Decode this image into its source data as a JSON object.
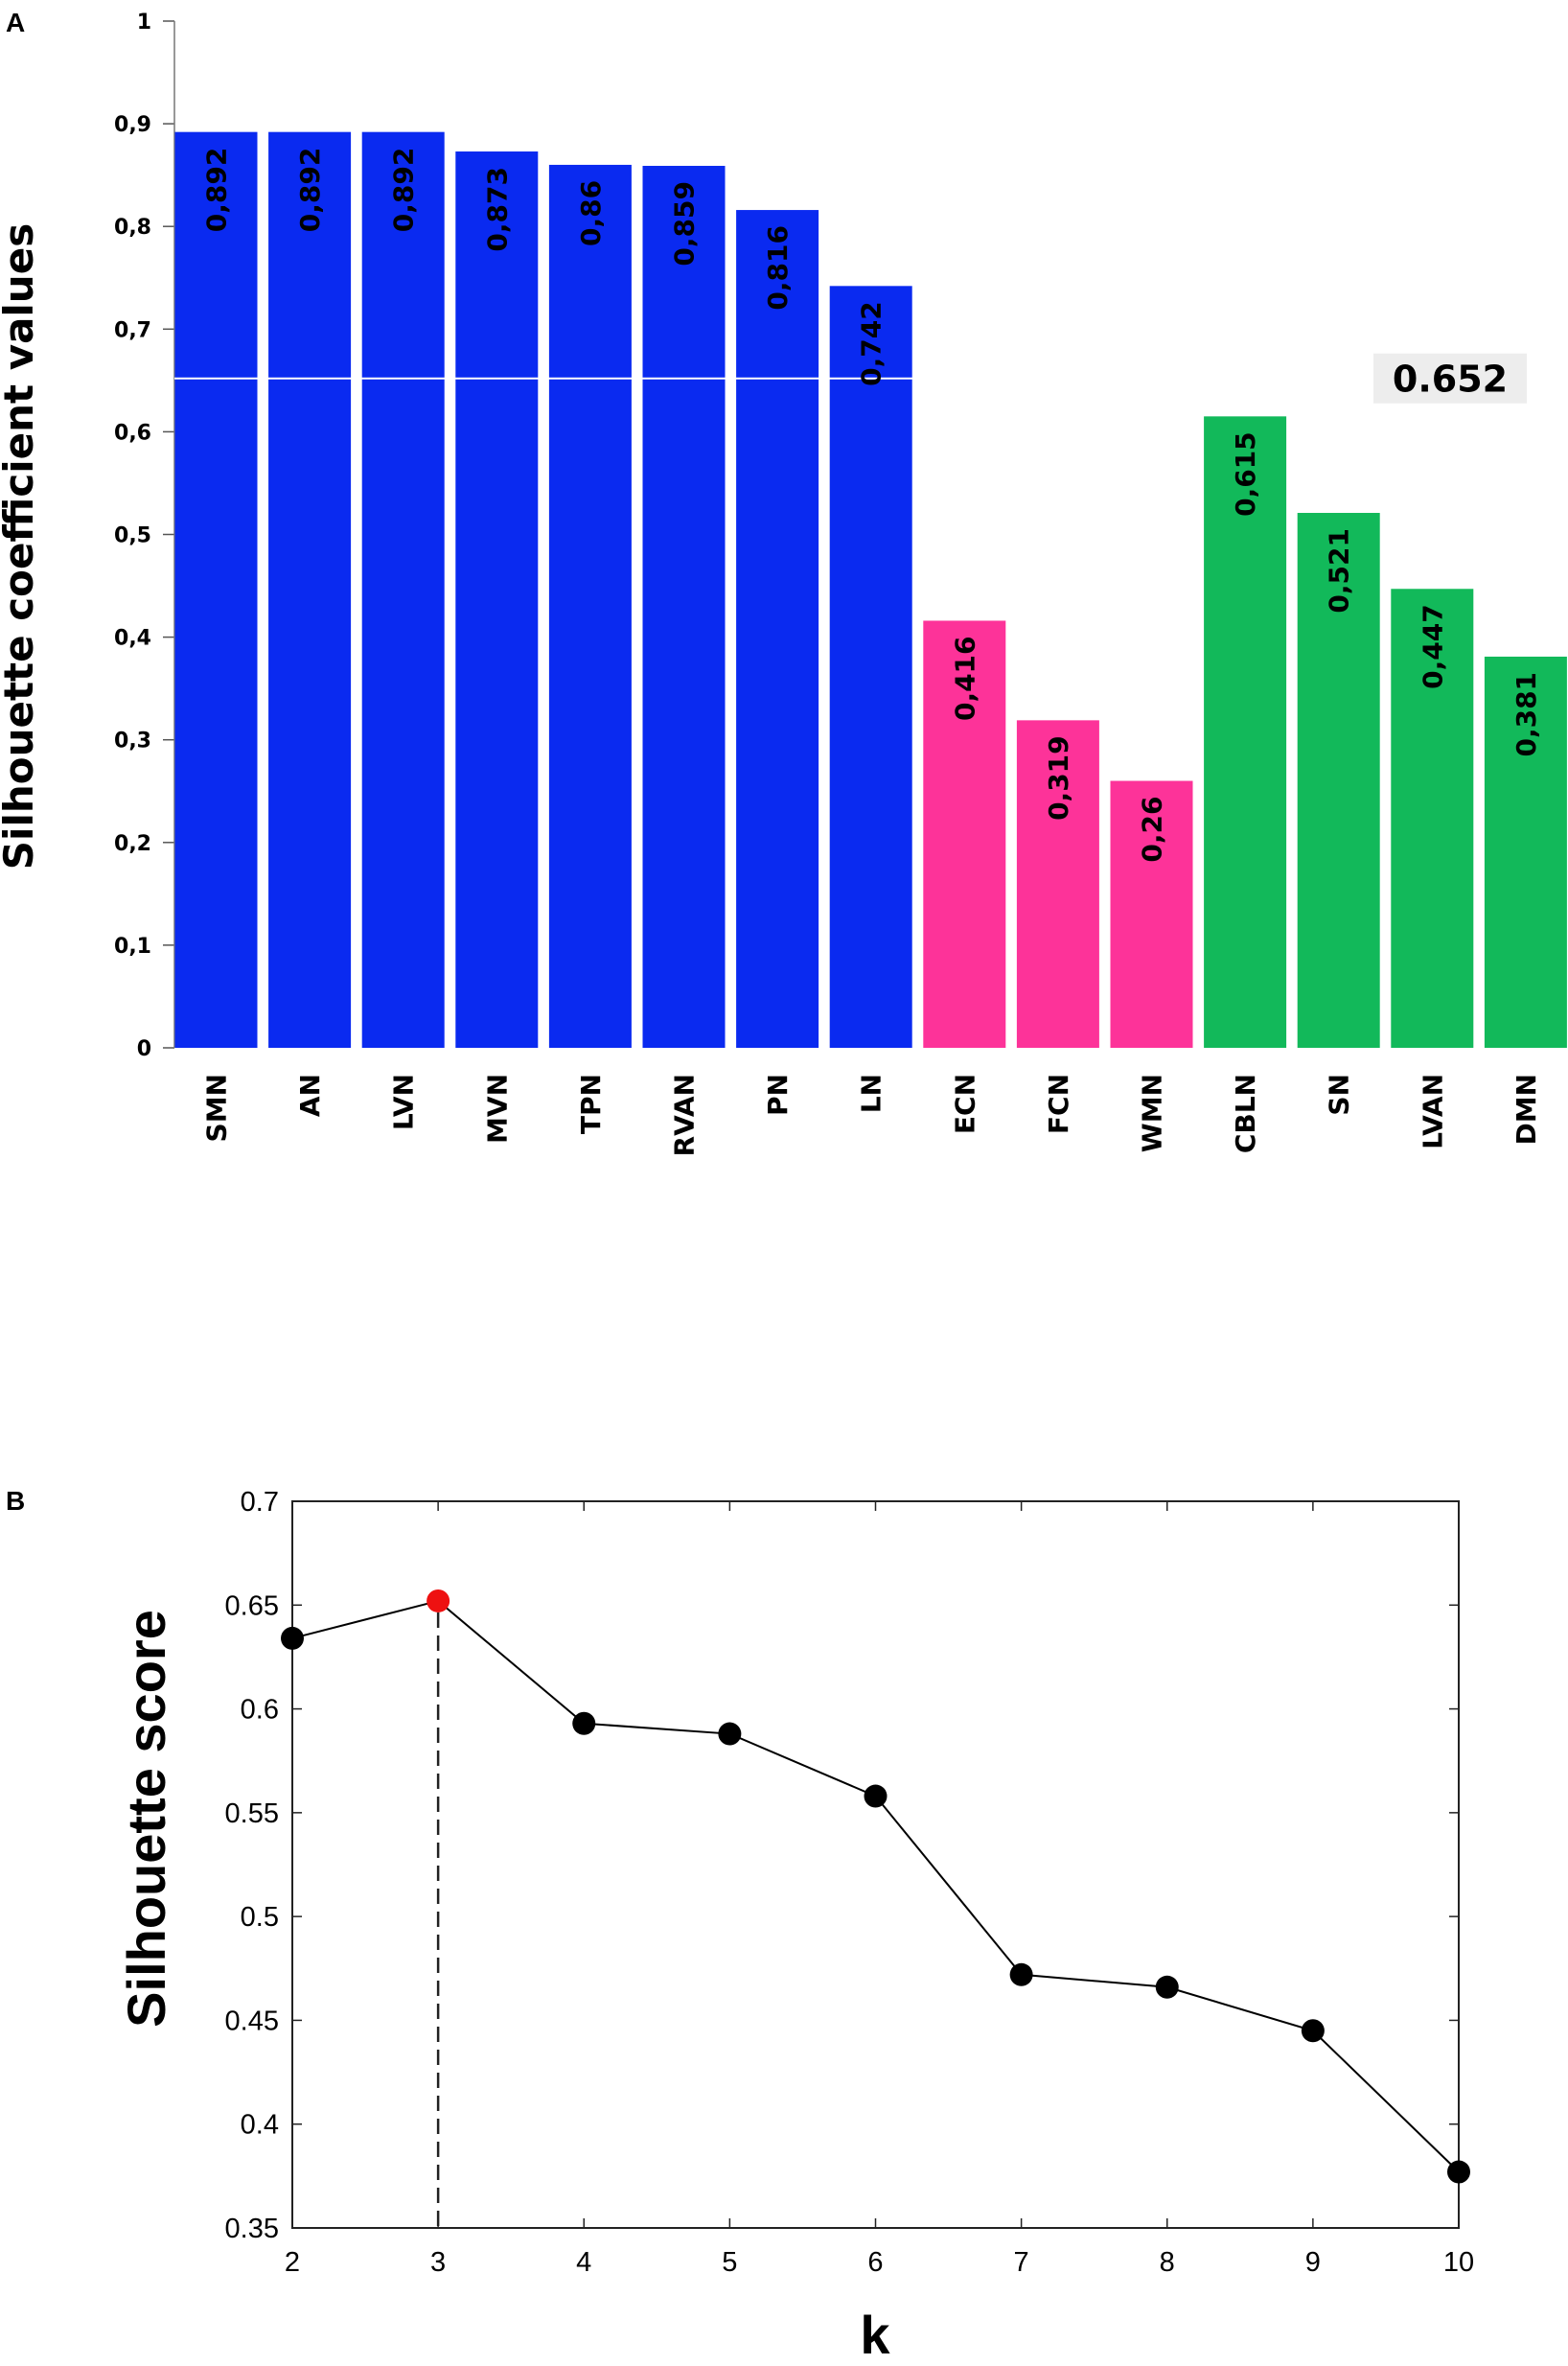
{
  "colors": {
    "networks_group1": "#0a2af0",
    "networks_group2": "#fd3399",
    "networks_group3": "#12b95a",
    "threshold_line": "#ffffff",
    "threshold_box": "#ededed",
    "line": "#000000",
    "point": "#000000",
    "highlight_point": "#ee1111"
  },
  "chart_data": [
    {
      "panel": "A",
      "type": "bar",
      "ylabel": "Silhouette coefficient values",
      "ylim": [
        0,
        1
      ],
      "ytick_values": [
        0,
        0.1,
        0.2,
        0.3,
        0.4,
        0.5,
        0.6,
        0.7,
        0.8,
        0.9,
        1
      ],
      "ytick_labels": [
        "0",
        "0,1",
        "0,2",
        "0,3",
        "0,4",
        "0,5",
        "0,6",
        "0,7",
        "0,8",
        "0,9",
        "1"
      ],
      "categories": [
        "SMN",
        "AN",
        "LVN",
        "MVN",
        "TPN",
        "RVAN",
        "PN",
        "LN",
        "ECN",
        "FCN",
        "WMN",
        "CBLN",
        "SN",
        "LVAN",
        "DMN"
      ],
      "values": [
        0.892,
        0.892,
        0.892,
        0.873,
        0.86,
        0.859,
        0.816,
        0.742,
        0.416,
        0.319,
        0.26,
        0.615,
        0.521,
        0.447,
        0.381
      ],
      "value_labels": [
        "0,892",
        "0,892",
        "0,892",
        "0,873",
        "0,86",
        "0,859",
        "0,816",
        "0,742",
        "0,416",
        "0,319",
        "0,26",
        "0,615",
        "0,521",
        "0,447",
        "0,381"
      ],
      "groups": [
        1,
        1,
        1,
        1,
        1,
        1,
        1,
        1,
        2,
        2,
        2,
        3,
        3,
        3,
        3
      ],
      "threshold": 0.652,
      "threshold_label": "0.652"
    },
    {
      "panel": "B",
      "type": "line",
      "xlabel": "k",
      "ylabel": "Silhouette score",
      "x": [
        2,
        3,
        4,
        5,
        6,
        7,
        8,
        9,
        10
      ],
      "y": [
        0.634,
        0.652,
        0.593,
        0.588,
        0.558,
        0.472,
        0.466,
        0.445,
        0.377
      ],
      "xlim": [
        2,
        10
      ],
      "ylim": [
        0.35,
        0.7
      ],
      "xtick_values": [
        2,
        3,
        4,
        5,
        6,
        7,
        8,
        9,
        10
      ],
      "xtick_labels": [
        "2",
        "3",
        "4",
        "5",
        "6",
        "7",
        "8",
        "9",
        "10"
      ],
      "ytick_values": [
        0.35,
        0.4,
        0.45,
        0.5,
        0.55,
        0.6,
        0.65,
        0.7
      ],
      "ytick_labels": [
        "0.35",
        "0.4",
        "0.45",
        "0.5",
        "0.55",
        "0.6",
        "0.65",
        "0.7"
      ],
      "highlight_x": 3
    }
  ]
}
